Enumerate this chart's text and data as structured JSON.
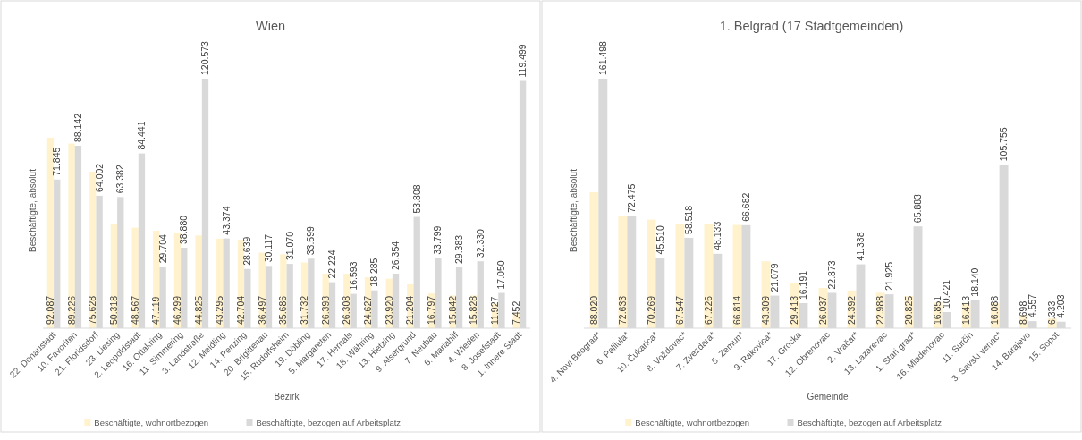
{
  "chart_data": [
    {
      "type": "bar",
      "title": "Wien",
      "xlabel": "Bezirk",
      "ylabel": "Beschäftigte, absolut",
      "legend": "bottom",
      "categories": [
        "22. Donaustadt",
        "10. Favoriten",
        "21. Floridsdorf",
        "23. Liesing",
        "2. Leopoldstadt",
        "16. Ottakring",
        "11. Simmering",
        "3. Landstraße",
        "12. Meidling",
        "14. Penzing",
        "20. Brigittenau",
        "15. Rudolfsheim",
        "19. Döbling",
        "5. Margareten",
        "17. Hernals",
        "18. Währing",
        "13. Hietzing",
        "9. Alsergrund",
        "7. Neubau",
        "6. Mariahilf",
        "4. Wieden",
        "8. Josefstadt",
        "1. Innere Stadt"
      ],
      "series": [
        {
          "name": "Beschäftigte, wohnortbezogen",
          "color": "#fff2cc",
          "values": [
            92087,
            89226,
            75628,
            50318,
            48567,
            47119,
            46299,
            44825,
            43295,
            42704,
            36497,
            35686,
            31732,
            26393,
            26308,
            24627,
            23920,
            21204,
            16797,
            15842,
            15828,
            11927,
            7452
          ],
          "value_labels": [
            "92.087",
            "89.226",
            "75.628",
            "50.318",
            "48.567",
            "47.119",
            "46.299",
            "44.825",
            "43.295",
            "42.704",
            "36.497",
            "35.686",
            "31.732",
            "26.393",
            "26.308",
            "24.627",
            "23.920",
            "21.204",
            "16.797",
            "15.842",
            "15.828",
            "11.927",
            "7.452"
          ]
        },
        {
          "name": "Beschäftigte, bezogen auf Arbeitsplatz",
          "color": "#d9d9d9",
          "values": [
            71845,
            88142,
            64002,
            63382,
            84441,
            29704,
            38880,
            120573,
            43374,
            28639,
            30117,
            31070,
            33599,
            22224,
            16593,
            18285,
            26354,
            53808,
            33799,
            29383,
            32330,
            17050,
            119499
          ],
          "value_labels": [
            "71.845",
            "88.142",
            "64.002",
            "63.382",
            "84.441",
            "29.704",
            "38.880",
            "120.573",
            "43.374",
            "28.639",
            "30.117",
            "31.070",
            "33.599",
            "22.224",
            "16.593",
            "18.285",
            "26.354",
            "53.808",
            "33.799",
            "29.383",
            "32.330",
            "17.050",
            "119.499"
          ]
        }
      ]
    },
    {
      "type": "bar",
      "title": "1. Belgrad (17 Stadtgemeinden)",
      "xlabel": "Gemeinde",
      "ylabel": "Beschäftigte, absolut",
      "legend": "bottom",
      "categories": [
        "4. Novi Beograd*",
        "6. Palilula*",
        "10. Čukarica*",
        "8. Voždovac*",
        "7. Zvezdara*",
        "5. Zemun*",
        "9. Rakovica*",
        "17. Grocka",
        "12. Obrenovac",
        "2. Vračar*",
        "13. Lazarevac",
        "1. Stari grad*",
        "16. Mladenovac",
        "11. Surčin",
        "3. Savski venac*",
        "14. Barajevo",
        "15. Sopot"
      ],
      "series": [
        {
          "name": "Beschäftigte, wohnortbezogen",
          "color": "#fff2cc",
          "values": [
            88020,
            72633,
            70269,
            67547,
            67226,
            66814,
            43309,
            29413,
            26037,
            24392,
            22988,
            20825,
            16851,
            16413,
            16088,
            8698,
            6333
          ],
          "value_labels": [
            "88.020",
            "72.633",
            "70.269",
            "67.547",
            "67.226",
            "66.814",
            "43.309",
            "29.413",
            "26.037",
            "24.392",
            "22.988",
            "20.825",
            "16.851",
            "16.413",
            "16.088",
            "8.698",
            "6.333"
          ]
        },
        {
          "name": "Beschäftigte, bezogen auf Arbeitsplatz",
          "color": "#d9d9d9",
          "values": [
            161498,
            72475,
            45510,
            58518,
            48133,
            66682,
            21079,
            16191,
            22873,
            41338,
            21925,
            65883,
            10421,
            18140,
            105755,
            4557,
            4203
          ],
          "value_labels": [
            "161.498",
            "72.475",
            "45.510",
            "58.518",
            "48.133",
            "66.682",
            "21.079",
            "16.191",
            "22.873",
            "41.338",
            "21.925",
            "65.883",
            "10.421",
            "18.140",
            "105.755",
            "4.557",
            "4.203"
          ]
        }
      ]
    }
  ]
}
